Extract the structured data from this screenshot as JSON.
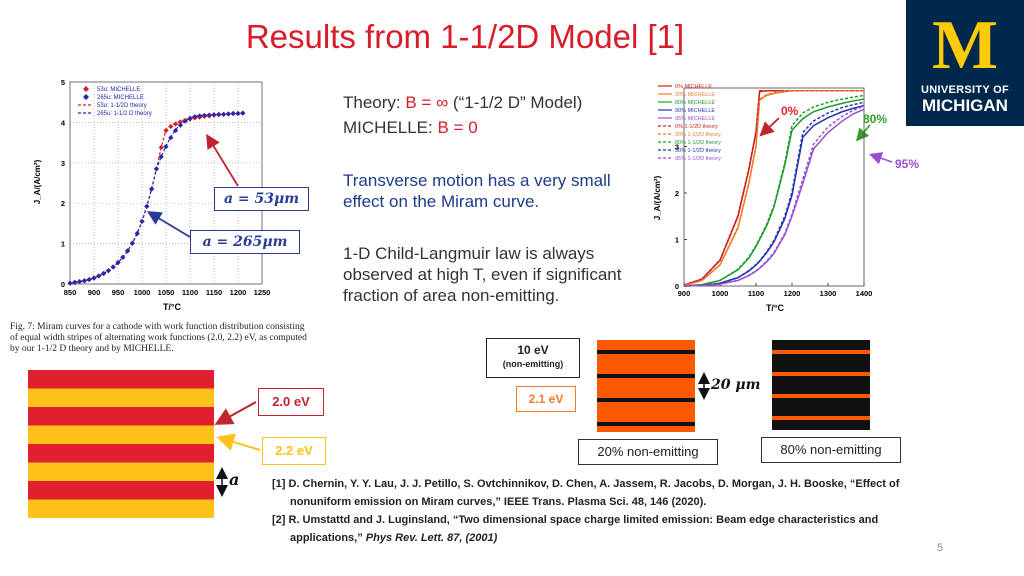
{
  "slide": {
    "title": "Results from 1-1/2D Model [1]",
    "page_number": "5"
  },
  "logo": {
    "letter": "M",
    "line1": "UNIVERSITY OF",
    "line2": "MICHIGAN"
  },
  "theory_text": {
    "theory_prefix": "Theory: ",
    "theory_b": "B = ∞",
    "theory_suffix": " (“1-1/2 D” Model)",
    "michelle_prefix": "MICHELLE: ",
    "michelle_b": "B = 0"
  },
  "paragraph1": "Transverse motion has a very small effect on the Miram curve.",
  "paragraph2": "1-D Child-Langmuir law is always observed at high T, even if significant fraction of area non-emitting.",
  "left_chart": {
    "caption": "Fig. 7: Miram curves for a cathode with work function distribution consisting of equal width stripes of alternating work functions (2.0, 2.2) eV, as computed by our 1-1/2 D theory and by MICHELLE.",
    "callout_53": "a = 53μm",
    "callout_265": "a = 265μm"
  },
  "stripes": {
    "label_20": "2.0 eV",
    "label_22": "2.2 eV",
    "width_label": "a",
    "colors": {
      "red": "#e0202e",
      "yellow": "#ffc21a",
      "orange": "#ff5a00",
      "black": "#111111"
    }
  },
  "emitting": {
    "label_10ev_top": "10 eV",
    "label_10ev_bottom": "(non-emitting)",
    "label_21ev": "2.1 eV",
    "period_label": "20 μm",
    "caption_20": "20% non-emitting",
    "caption_80": "80% non-emitting"
  },
  "references": {
    "ref1_line1": "[1] D. Chernin, Y. Y. Lau, J. J. Petillo, S. Ovtchinnikov, D. Chen, A. Jassem, R. Jacobs, D. Morgan, J. H. Booske, “Effect of",
    "ref1_line2": "nonuniform emission on Miram curves,” IEEE Trans. Plasma Sci. 48, 146 (2020).",
    "ref2_line1": "[2] R. Umstattd and J. Luginsland, “Two dimensional space charge limited emission: Beam edge characteristics and",
    "ref2_line2_a": "applications,” ",
    "ref2_line2_b": "Phys Rev. Lett. 87, (2001)"
  },
  "chart_data": [
    {
      "type": "scatter",
      "title": "",
      "xlabel": "T/°C",
      "ylabel": "J_A/(A/cm²)",
      "xlim": [
        850,
        1250
      ],
      "ylim": [
        0,
        5
      ],
      "xticks": [
        "850",
        "900",
        "950",
        "1000",
        "1050",
        "1100",
        "1150",
        "1200",
        "1250"
      ],
      "yticks": [
        "0",
        "1",
        "2",
        "3",
        "4",
        "5"
      ],
      "grid": true,
      "legend_position": "top-left",
      "legend": [
        "53u: MICHELLE",
        "265u: MICHELLE",
        "53u: 1-1/2D theory",
        "265u: 1-1/2 D theory"
      ],
      "x": [
        850,
        860,
        870,
        880,
        890,
        900,
        910,
        920,
        930,
        940,
        950,
        960,
        970,
        980,
        990,
        1000,
        1010,
        1020,
        1030,
        1040,
        1050,
        1060,
        1070,
        1080,
        1090,
        1100,
        1110,
        1120,
        1130,
        1140,
        1150,
        1160,
        1170,
        1180,
        1190,
        1200,
        1210
      ],
      "series": [
        {
          "name": "53u: MICHELLE",
          "color": "#d81c2a",
          "values": [
            0.02,
            0.04,
            0.06,
            0.08,
            0.11,
            0.15,
            0.2,
            0.26,
            0.33,
            0.42,
            0.53,
            0.66,
            0.82,
            1.01,
            1.25,
            1.55,
            1.92,
            2.35,
            2.85,
            3.38,
            3.8,
            3.9,
            3.96,
            4.01,
            4.05,
            4.08,
            4.11,
            4.13,
            4.15,
            4.16,
            4.18,
            4.19,
            4.2,
            4.21,
            4.22,
            4.22,
            4.23
          ]
        },
        {
          "name": "265u: MICHELLE",
          "color": "#2326b0",
          "values": [
            0.02,
            0.04,
            0.06,
            0.08,
            0.11,
            0.15,
            0.2,
            0.26,
            0.33,
            0.42,
            0.53,
            0.66,
            0.82,
            1.01,
            1.25,
            1.55,
            1.92,
            2.35,
            2.85,
            3.15,
            3.4,
            3.62,
            3.8,
            3.93,
            4.03,
            4.1,
            4.14,
            4.16,
            4.17,
            4.18,
            4.19,
            4.2,
            4.2,
            4.21,
            4.22,
            4.22,
            4.23
          ]
        },
        {
          "name": "53u: 1-1/2D theory",
          "color": "#d81c2a",
          "values": [
            0.02,
            0.04,
            0.06,
            0.08,
            0.11,
            0.15,
            0.2,
            0.26,
            0.33,
            0.42,
            0.53,
            0.66,
            0.82,
            1.01,
            1.25,
            1.55,
            1.92,
            2.35,
            2.85,
            3.38,
            3.82,
            3.92,
            3.98,
            4.03,
            4.07,
            4.1,
            4.12,
            4.14,
            4.16,
            4.17,
            4.18,
            4.19,
            4.2,
            4.21,
            4.22,
            4.22,
            4.23
          ]
        },
        {
          "name": "265u: 1-1/2 D theory",
          "color": "#2326b0",
          "values": [
            0.02,
            0.04,
            0.06,
            0.08,
            0.11,
            0.15,
            0.2,
            0.26,
            0.33,
            0.42,
            0.53,
            0.66,
            0.82,
            1.01,
            1.25,
            1.55,
            1.92,
            2.35,
            2.85,
            3.15,
            3.42,
            3.64,
            3.82,
            3.95,
            4.04,
            4.11,
            4.15,
            4.17,
            4.18,
            4.19,
            4.19,
            4.2,
            4.2,
            4.21,
            4.22,
            4.22,
            4.23
          ]
        }
      ]
    },
    {
      "type": "line",
      "title": "",
      "xlabel": "T/°C",
      "ylabel": "J_A/(A/cm²)",
      "xlim": [
        900,
        1400
      ],
      "ylim": [
        0,
        4
      ],
      "xticks": [
        "900",
        "1000",
        "1100",
        "1200",
        "1300",
        "1400"
      ],
      "yticks": [
        "0",
        "1",
        "2",
        "3"
      ],
      "grid": false,
      "legend_position": "top-left",
      "annotations": [
        "0%",
        "80%",
        "95%"
      ],
      "legend": [
        "0% MICHELLE",
        "20% MICHELLE",
        "80% MICHELLE",
        "90% MICHELLE",
        "95% MICHELLE",
        "0% 1-1/2D theory",
        "20% 1-1/2D theory",
        "80% 1-1/2D theory",
        "90% 1-1/2D theory",
        "95% 1-1/2D theory"
      ],
      "x": [
        900,
        950,
        1000,
        1050,
        1080,
        1100,
        1110,
        1130,
        1150,
        1180,
        1200,
        1230,
        1260,
        1300,
        1340,
        1370,
        1400
      ],
      "series": [
        {
          "name": "0% MICHELLE",
          "color": "#c8201e",
          "values": [
            0.02,
            0.15,
            0.55,
            1.5,
            2.5,
            3.3,
            4.18,
            4.2,
            4.22,
            4.24,
            4.26,
            4.28,
            4.3,
            4.32,
            4.34,
            4.35,
            4.36
          ]
        },
        {
          "name": "20% MICHELLE",
          "color": "#f07a30",
          "values": [
            0.01,
            0.12,
            0.45,
            1.25,
            2.2,
            3.0,
            4.0,
            4.1,
            4.14,
            4.18,
            4.2,
            4.23,
            4.26,
            4.29,
            4.32,
            4.34,
            4.35
          ]
        },
        {
          "name": "80% MICHELLE",
          "color": "#1e9a2e",
          "values": [
            0.0,
            0.03,
            0.12,
            0.35,
            0.6,
            0.85,
            1.0,
            1.3,
            1.7,
            2.6,
            3.35,
            3.6,
            3.75,
            3.85,
            3.93,
            3.98,
            4.02
          ]
        },
        {
          "name": "90% MICHELLE",
          "color": "#2434b0",
          "values": [
            0.0,
            0.01,
            0.06,
            0.18,
            0.32,
            0.45,
            0.53,
            0.72,
            0.95,
            1.45,
            1.95,
            3.2,
            3.45,
            3.62,
            3.75,
            3.82,
            3.88
          ]
        },
        {
          "name": "95% MICHELLE",
          "color": "#9a4fd0",
          "values": [
            0.0,
            0.01,
            0.04,
            0.12,
            0.22,
            0.32,
            0.38,
            0.52,
            0.7,
            1.1,
            1.5,
            2.2,
            2.95,
            3.3,
            3.55,
            3.7,
            3.8
          ]
        },
        {
          "name": "0% 1-1/2D theory",
          "color": "#c8201e",
          "values": [
            0.02,
            0.15,
            0.56,
            1.52,
            2.52,
            3.32,
            4.2,
            4.22,
            4.24,
            4.26,
            4.28,
            4.3,
            4.32,
            4.34,
            4.36,
            4.37,
            4.38
          ]
        },
        {
          "name": "20% 1-1/2D theory",
          "color": "#f07a30",
          "values": [
            0.01,
            0.12,
            0.46,
            1.27,
            2.22,
            3.02,
            4.02,
            4.12,
            4.16,
            4.2,
            4.22,
            4.25,
            4.28,
            4.31,
            4.34,
            4.36,
            4.37
          ]
        },
        {
          "name": "80% 1-1/2D theory",
          "color": "#1e9a2e",
          "values": [
            0.0,
            0.03,
            0.12,
            0.36,
            0.62,
            0.87,
            1.02,
            1.33,
            1.73,
            2.65,
            3.45,
            3.72,
            3.85,
            3.95,
            4.02,
            4.06,
            4.1
          ]
        },
        {
          "name": "90% 1-1/2D theory",
          "color": "#2434b0",
          "values": [
            0.0,
            0.01,
            0.06,
            0.18,
            0.33,
            0.46,
            0.54,
            0.74,
            0.98,
            1.5,
            2.02,
            3.3,
            3.55,
            3.72,
            3.84,
            3.9,
            3.95
          ]
        },
        {
          "name": "95% 1-1/2D theory",
          "color": "#9a4fd0",
          "values": [
            0.0,
            0.01,
            0.04,
            0.12,
            0.23,
            0.33,
            0.39,
            0.54,
            0.72,
            1.13,
            1.55,
            2.3,
            3.05,
            3.42,
            3.65,
            3.78,
            3.87
          ]
        }
      ]
    }
  ]
}
